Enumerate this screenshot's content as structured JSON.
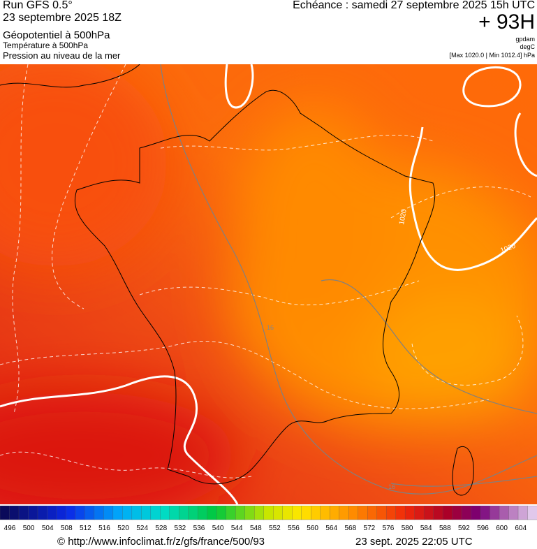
{
  "header": {
    "run": "Run GFS 0.5°",
    "run_date": "23 septembre 2025 18Z",
    "field_1": "Géopotentiel à 500hPa",
    "field_2": "Température à 500hPa",
    "field_3": "Pression au niveau de la mer",
    "valid_time": "Echéance : samedi 27 septembre 2025 15h UTC",
    "lead": "+ 93H",
    "unit_1": "gpdam",
    "unit_2": "degC",
    "pressure_range": "[Max 1020.0 | Min 1012.4] hPa"
  },
  "map": {
    "isobar_labels": [
      "1020",
      "1020"
    ],
    "isotherm_labels": [
      "16",
      "16"
    ]
  },
  "colorbar": {
    "labels": [
      496,
      500,
      504,
      508,
      512,
      516,
      520,
      524,
      528,
      532,
      536,
      540,
      544,
      548,
      552,
      556,
      560,
      564,
      568,
      572,
      576,
      580,
      584,
      588,
      592,
      596,
      600,
      604
    ]
  },
  "footer": {
    "source": "© http://www.infoclimat.fr/z/gfs/france/500/93",
    "generated": "23 sept. 2025 22:05 UTC"
  }
}
